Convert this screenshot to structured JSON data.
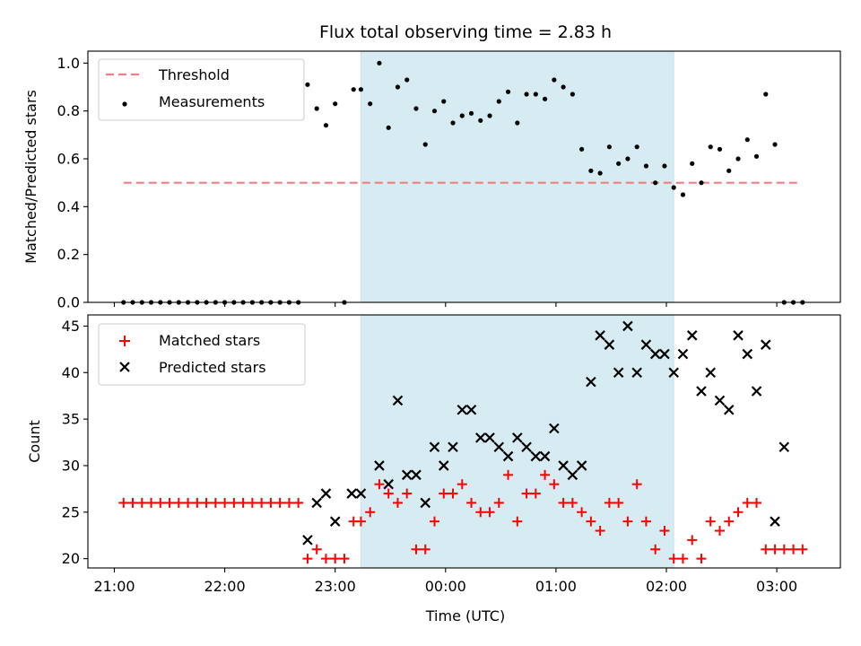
{
  "chart_data": [
    {
      "type": "scatter",
      "title": "Flux total observing time = 2.83 h",
      "ylabel": "Matched/Predicted stars",
      "xlabel": "",
      "ylim": [
        0,
        1.05
      ],
      "yticks": [
        "0.0",
        "0.2",
        "0.4",
        "0.6",
        "0.8",
        "1.0"
      ],
      "ytick_values": [
        0,
        0.2,
        0.4,
        0.6,
        0.8,
        1.0
      ],
      "legend": {
        "placement": "upper-left",
        "entries": [
          "Threshold",
          "Measurements"
        ]
      },
      "highlight_span": {
        "start": "23:14",
        "end": "02:04"
      },
      "threshold": {
        "name": "Threshold",
        "value": 0.5,
        "x_start": "21:05",
        "x_end": "03:13",
        "color": "#f08080"
      },
      "series": [
        {
          "name": "Measurements",
          "color": "#000000",
          "x": [
            "21:05",
            "21:10",
            "21:15",
            "21:20",
            "21:25",
            "21:30",
            "21:35",
            "21:40",
            "21:45",
            "21:50",
            "21:55",
            "22:00",
            "22:05",
            "22:10",
            "22:15",
            "22:20",
            "22:25",
            "22:30",
            "22:35",
            "22:40",
            "22:45",
            "22:50",
            "22:55",
            "23:00",
            "23:05",
            "23:10",
            "23:14",
            "23:19",
            "23:24",
            "23:29",
            "23:34",
            "23:39",
            "23:44",
            "23:49",
            "23:54",
            "23:59",
            "00:04",
            "00:09",
            "00:14",
            "00:19",
            "00:24",
            "00:29",
            "00:34",
            "00:39",
            "00:44",
            "00:49",
            "00:54",
            "00:59",
            "01:04",
            "01:09",
            "01:14",
            "01:19",
            "01:24",
            "01:29",
            "01:34",
            "01:39",
            "01:44",
            "01:49",
            "01:54",
            "01:59",
            "02:04",
            "02:09",
            "02:14",
            "02:19",
            "02:24",
            "02:29",
            "02:34",
            "02:39",
            "02:44",
            "02:49",
            "02:54",
            "02:59",
            "03:04",
            "03:09",
            "03:14"
          ],
          "y": [
            0,
            0,
            0,
            0,
            0,
            0,
            0,
            0,
            0,
            0,
            0,
            0,
            0,
            0,
            0,
            0,
            0,
            0,
            0,
            0,
            0.91,
            0.81,
            0.74,
            0.83,
            0,
            0.89,
            0.89,
            0.83,
            1.0,
            0.73,
            0.9,
            0.93,
            0.81,
            0.66,
            0.8,
            0.84,
            0.75,
            0.78,
            0.79,
            0.76,
            0.78,
            0.84,
            0.88,
            0.75,
            0.87,
            0.87,
            0.85,
            0.93,
            0.9,
            0.87,
            0.64,
            0.55,
            0.54,
            0.65,
            0.58,
            0.6,
            0.65,
            0.57,
            0.5,
            0.57,
            0.48,
            0.45,
            0.58,
            0.5,
            0.65,
            0.64,
            0.55,
            0.6,
            0.68,
            0.61,
            0.87,
            0.66,
            0,
            0,
            0
          ]
        }
      ]
    },
    {
      "type": "scatter",
      "title": "",
      "ylabel": "Count",
      "xlabel": "Time (UTC)",
      "ylim": [
        19,
        46.2
      ],
      "yticks": [
        "20",
        "25",
        "30",
        "35",
        "40",
        "45"
      ],
      "ytick_values": [
        20,
        25,
        30,
        35,
        40,
        45
      ],
      "xticks": [
        "21:00",
        "22:00",
        "23:00",
        "00:00",
        "01:00",
        "02:00",
        "03:00"
      ],
      "legend": {
        "placement": "upper-left",
        "entries": [
          "Matched stars",
          "Predicted stars"
        ]
      },
      "highlight_span": {
        "start": "23:14",
        "end": "02:04"
      },
      "series": [
        {
          "name": "Matched stars",
          "color": "#ff0000",
          "marker": "+",
          "x": [
            "21:05",
            "21:10",
            "21:15",
            "21:20",
            "21:25",
            "21:30",
            "21:35",
            "21:40",
            "21:45",
            "21:50",
            "21:55",
            "22:00",
            "22:05",
            "22:10",
            "22:15",
            "22:20",
            "22:25",
            "22:30",
            "22:35",
            "22:40",
            "22:45",
            "22:50",
            "22:55",
            "23:00",
            "23:05",
            "23:10",
            "23:14",
            "23:19",
            "23:24",
            "23:29",
            "23:34",
            "23:39",
            "23:44",
            "23:49",
            "23:54",
            "23:59",
            "00:04",
            "00:09",
            "00:14",
            "00:19",
            "00:24",
            "00:29",
            "00:34",
            "00:39",
            "00:44",
            "00:49",
            "00:54",
            "00:59",
            "01:04",
            "01:09",
            "01:14",
            "01:19",
            "01:24",
            "01:29",
            "01:34",
            "01:39",
            "01:44",
            "01:49",
            "01:54",
            "01:59",
            "02:04",
            "02:09",
            "02:14",
            "02:19",
            "02:24",
            "02:29",
            "02:34",
            "02:39",
            "02:44",
            "02:49",
            "02:54",
            "02:59",
            "03:04",
            "03:09",
            "03:14"
          ],
          "y": [
            26,
            26,
            26,
            26,
            26,
            26,
            26,
            26,
            26,
            26,
            26,
            26,
            26,
            26,
            26,
            26,
            26,
            26,
            26,
            26,
            20,
            21,
            20,
            20,
            20,
            24,
            24,
            25,
            28,
            27,
            26,
            27,
            21,
            21,
            24,
            27,
            27,
            28,
            26,
            25,
            25,
            26,
            29,
            24,
            27,
            27,
            29,
            28,
            26,
            26,
            25,
            24,
            23,
            26,
            26,
            24,
            28,
            24,
            21,
            23,
            20,
            20,
            22,
            20,
            24,
            23,
            24,
            25,
            26,
            26,
            21,
            21,
            21,
            21,
            21
          ]
        },
        {
          "name": "Predicted stars",
          "color": "#000000",
          "marker": "x",
          "x": [
            "22:45",
            "22:50",
            "22:55",
            "23:00",
            "23:09",
            "23:14",
            "23:24",
            "23:29",
            "23:34",
            "23:39",
            "23:44",
            "23:49",
            "23:54",
            "23:59",
            "00:04",
            "00:09",
            "00:14",
            "00:19",
            "00:24",
            "00:29",
            "00:34",
            "00:39",
            "00:44",
            "00:49",
            "00:54",
            "00:59",
            "01:04",
            "01:09",
            "01:14",
            "01:19",
            "01:24",
            "01:29",
            "01:34",
            "01:39",
            "01:44",
            "01:49",
            "01:54",
            "01:59",
            "02:04",
            "02:09",
            "02:14",
            "02:19",
            "02:24",
            "02:29",
            "02:34",
            "02:39",
            "02:44",
            "02:49",
            "02:54",
            "02:59",
            "03:04"
          ],
          "y": [
            22,
            26,
            27,
            24,
            27,
            27,
            30,
            28,
            37,
            29,
            29,
            26,
            32,
            30,
            32,
            36,
            36,
            33,
            33,
            32,
            31,
            33,
            32,
            31,
            31,
            34,
            30,
            29,
            30,
            39,
            44,
            43,
            40,
            45,
            40,
            43,
            42,
            42,
            40,
            42,
            44,
            38,
            40,
            37,
            36,
            44,
            42,
            38,
            43,
            24,
            32
          ]
        }
      ]
    }
  ]
}
